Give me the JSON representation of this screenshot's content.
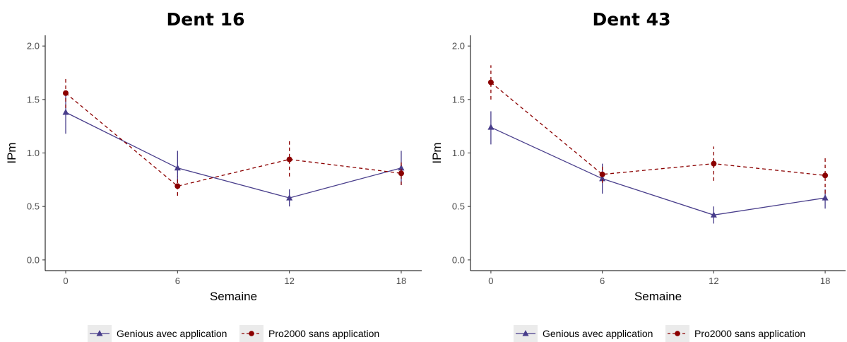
{
  "colors": {
    "genious": "#483D8B",
    "pro2000": "#8B0000",
    "legend_key_bg": "#EBEBEB"
  },
  "legend": {
    "items": [
      "Genious avec application",
      "Pro2000 sans application"
    ]
  },
  "chart_data": [
    {
      "type": "line",
      "title": "Dent 16",
      "xlabel": "Semaine",
      "ylabel": "IPm",
      "x": [
        0,
        6,
        12,
        18
      ],
      "xticks": [
        "0",
        "6",
        "12",
        "18"
      ],
      "yticks": [
        "0.0",
        "0.5",
        "1.0",
        "1.5",
        "2.0"
      ],
      "xlim": [
        -1.1,
        19.1
      ],
      "ylim": [
        -0.1,
        2.1
      ],
      "grid": false,
      "legend_position": "bottom",
      "series": [
        {
          "name": "Genious avec application",
          "line": "solid",
          "marker": "triangle",
          "values": [
            1.38,
            0.86,
            0.58,
            0.86
          ],
          "err_low": [
            1.18,
            0.72,
            0.5,
            0.7
          ],
          "err_high": [
            1.54,
            1.02,
            0.66,
            1.02
          ]
        },
        {
          "name": "Pro2000 sans application",
          "line": "dashed",
          "marker": "circle",
          "values": [
            1.56,
            0.69,
            0.94,
            0.81
          ],
          "err_low": [
            1.42,
            0.6,
            0.78,
            0.7
          ],
          "err_high": [
            1.7,
            0.78,
            1.11,
            0.92
          ]
        }
      ]
    },
    {
      "type": "line",
      "title": "Dent 43",
      "xlabel": "Semaine",
      "ylabel": "IPm",
      "x": [
        0,
        6,
        12,
        18
      ],
      "xticks": [
        "0",
        "6",
        "12",
        "18"
      ],
      "yticks": [
        "0.0",
        "0.5",
        "1.0",
        "1.5",
        "2.0"
      ],
      "xlim": [
        -1.1,
        19.1
      ],
      "ylim": [
        -0.1,
        2.1
      ],
      "grid": false,
      "legend_position": "bottom",
      "series": [
        {
          "name": "Genious avec application",
          "line": "solid",
          "marker": "triangle",
          "values": [
            1.24,
            0.76,
            0.42,
            0.58
          ],
          "err_low": [
            1.08,
            0.62,
            0.34,
            0.48
          ],
          "err_high": [
            1.39,
            0.9,
            0.5,
            0.66
          ]
        },
        {
          "name": "Pro2000 sans application",
          "line": "dashed",
          "marker": "circle",
          "values": [
            1.66,
            0.8,
            0.9,
            0.79
          ],
          "err_low": [
            1.5,
            0.72,
            0.74,
            0.62
          ],
          "err_high": [
            1.82,
            0.89,
            1.06,
            0.96
          ]
        }
      ]
    }
  ]
}
